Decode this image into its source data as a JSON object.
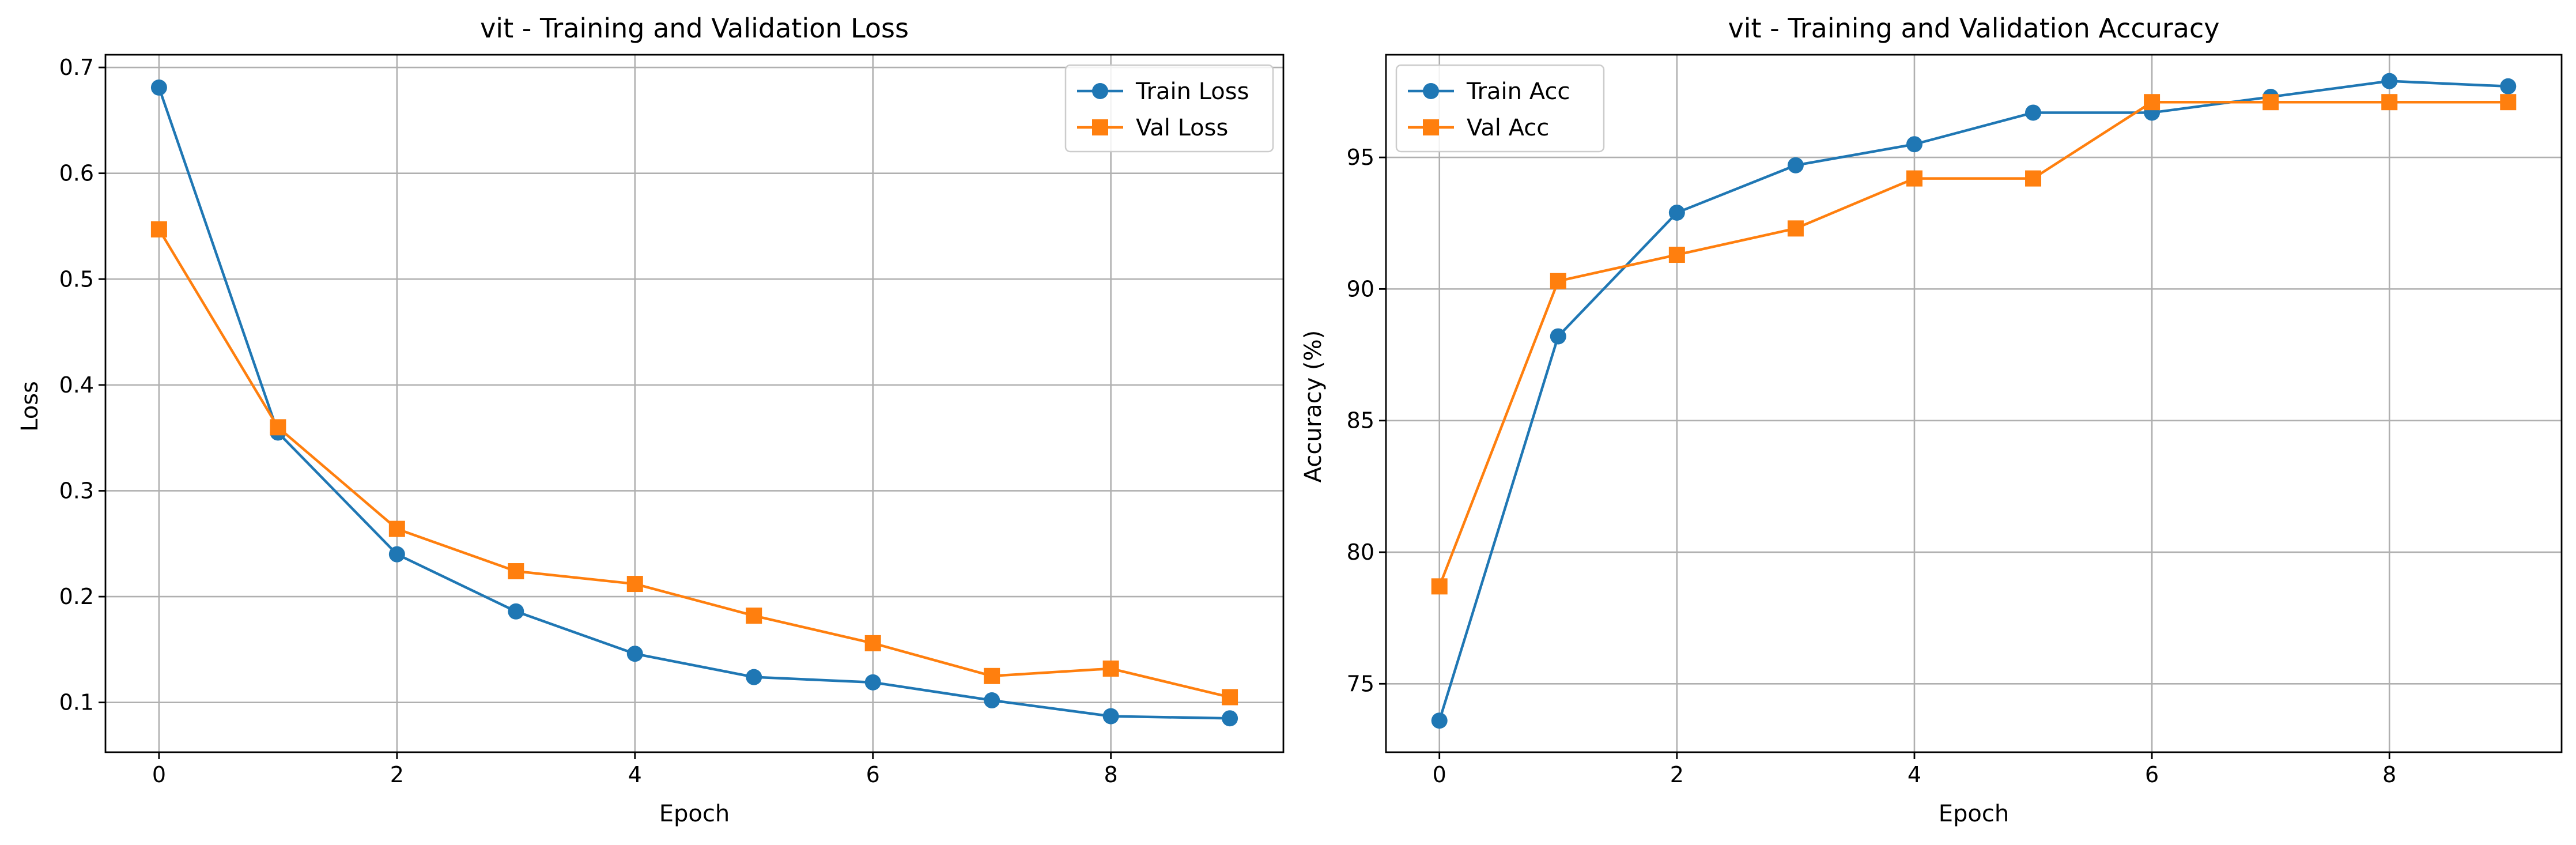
{
  "chart_data": [
    {
      "type": "line",
      "title": "vit - Training and Validation Loss",
      "xlabel": "Epoch",
      "ylabel": "Loss",
      "xlim": [
        -0.45,
        9.45
      ],
      "ylim": [
        0.053,
        0.712
      ],
      "xticks": [
        0,
        2,
        4,
        6,
        8
      ],
      "xtick_labels": [
        "0",
        "2",
        "4",
        "6",
        "8"
      ],
      "yticks": [
        0.1,
        0.2,
        0.3,
        0.4,
        0.5,
        0.6,
        0.7
      ],
      "ytick_labels": [
        "0.1",
        "0.2",
        "0.3",
        "0.4",
        "0.5",
        "0.6",
        "0.7"
      ],
      "grid": true,
      "legend": "top-right",
      "x": [
        0,
        1,
        2,
        3,
        4,
        5,
        6,
        7,
        8,
        9
      ],
      "series": [
        {
          "name": "Train Loss",
          "color": "#1f77b4",
          "marker": "circle",
          "values": [
            0.681,
            0.355,
            0.24,
            0.186,
            0.146,
            0.124,
            0.119,
            0.102,
            0.087,
            0.085
          ]
        },
        {
          "name": "Val Loss",
          "color": "#ff7f0e",
          "marker": "square",
          "values": [
            0.547,
            0.36,
            0.264,
            0.224,
            0.212,
            0.182,
            0.156,
            0.125,
            0.132,
            0.105
          ]
        }
      ]
    },
    {
      "type": "line",
      "title": "vit - Training and Validation Accuracy",
      "xlabel": "Epoch",
      "ylabel": "Accuracy (%)",
      "xlim": [
        -0.45,
        9.45
      ],
      "ylim": [
        72.4,
        98.9
      ],
      "xticks": [
        0,
        2,
        4,
        6,
        8
      ],
      "xtick_labels": [
        "0",
        "2",
        "4",
        "6",
        "8"
      ],
      "yticks": [
        75,
        80,
        85,
        90,
        95
      ],
      "ytick_labels": [
        "75",
        "80",
        "85",
        "90",
        "95"
      ],
      "grid": true,
      "legend": "top-left",
      "x": [
        0,
        1,
        2,
        3,
        4,
        5,
        6,
        7,
        8,
        9
      ],
      "series": [
        {
          "name": "Train Acc",
          "color": "#1f77b4",
          "marker": "circle",
          "values": [
            73.6,
            88.2,
            92.9,
            94.7,
            95.5,
            96.7,
            96.7,
            97.3,
            97.9,
            97.7
          ]
        },
        {
          "name": "Val Acc",
          "color": "#ff7f0e",
          "marker": "square",
          "values": [
            78.7,
            90.3,
            91.3,
            92.3,
            94.2,
            94.2,
            97.1,
            97.1,
            97.1,
            97.1
          ]
        }
      ]
    }
  ]
}
